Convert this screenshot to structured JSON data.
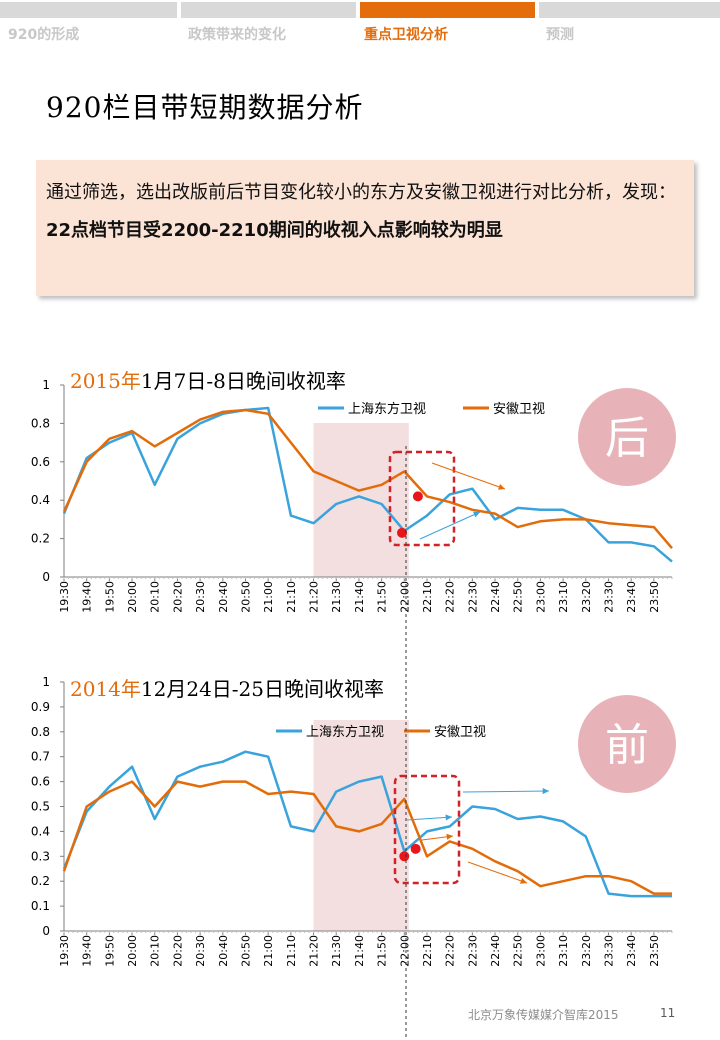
{
  "nav": {
    "items": [
      {
        "label": "920的形成",
        "active": false
      },
      {
        "label": "政策带来的变化",
        "active": false
      },
      {
        "label": "重点卫视分析",
        "active": true
      },
      {
        "label": "预测",
        "active": false
      }
    ]
  },
  "page": {
    "title": "920栏目带短期数据分析",
    "summary_normal": "通过筛选，选出改版前后节目变化较小的东方及安徽卫视进行对比分析，发现：",
    "summary_bold": "22点档节目受2200-2210期间的收视入点影响较为明显",
    "footer": "北京万象传媒媒介智库2015",
    "page_number": "11"
  },
  "colors": {
    "dongfang": "#3aa3dc",
    "anhui": "#e36c0a",
    "accent": "#e46c0a",
    "badge": "#e8b3b8",
    "highlight": "#f2dcdb",
    "dashed_box": "#d42027",
    "marker": "#e8151b"
  },
  "chart_data": [
    {
      "type": "line",
      "title_year": "2015年",
      "title_rest": "1月7日-8日晚间收视率",
      "badge": "后",
      "x": [
        "19:30",
        "19:40",
        "19:50",
        "20:00",
        "20:10",
        "20:20",
        "20:30",
        "20:40",
        "20:50",
        "21:00",
        "21:10",
        "21:20",
        "21:30",
        "21:40",
        "21:50",
        "22:00",
        "22:10",
        "22:20",
        "22:30",
        "22:40",
        "22:50",
        "23:00",
        "23:10",
        "23:20",
        "23:30",
        "23:40",
        "23:50",
        "23:58"
      ],
      "xticks": [
        "19:30",
        "19:40",
        "19:50",
        "20:00",
        "20:10",
        "20:20",
        "20:30",
        "20:40",
        "20:50",
        "21:00",
        "21:10",
        "21:20",
        "21:30",
        "21:40",
        "21:50",
        "22:00",
        "22:10",
        "22:20",
        "22:30",
        "22:40",
        "22:50",
        "23:00",
        "23:10",
        "23:20",
        "23:30",
        "23:40",
        "23:50"
      ],
      "ylim": [
        0,
        1
      ],
      "yticks": [
        "0",
        "0.2",
        "0.4",
        "0.6",
        "0.8",
        "1"
      ],
      "highlight_range": [
        "21:20",
        "22:02"
      ],
      "series": [
        {
          "name": "上海东方卫视",
          "values": [
            0.33,
            0.62,
            0.7,
            0.75,
            0.48,
            0.72,
            0.8,
            0.85,
            0.87,
            0.88,
            0.32,
            0.28,
            0.38,
            0.42,
            0.38,
            0.24,
            0.32,
            0.43,
            0.46,
            0.3,
            0.36,
            0.35,
            0.35,
            0.3,
            0.18,
            0.18,
            0.16,
            0.08
          ]
        },
        {
          "name": "安徽卫视",
          "values": [
            0.34,
            0.6,
            0.72,
            0.76,
            0.68,
            0.75,
            0.82,
            0.86,
            0.87,
            0.85,
            0.7,
            0.55,
            0.5,
            0.45,
            0.48,
            0.55,
            0.42,
            0.39,
            0.35,
            0.33,
            0.26,
            0.29,
            0.3,
            0.3,
            0.28,
            0.27,
            0.26,
            0.15
          ]
        }
      ],
      "markers": [
        {
          "x": "21:59",
          "y": 0.23
        },
        {
          "x": "22:06",
          "y": 0.42
        }
      ]
    },
    {
      "type": "line",
      "title_year": "2014年",
      "title_rest": "12月24日-25日晚间收视率",
      "badge": "前",
      "x": [
        "19:30",
        "19:40",
        "19:50",
        "20:00",
        "20:10",
        "20:20",
        "20:30",
        "20:40",
        "20:50",
        "21:00",
        "21:10",
        "21:20",
        "21:30",
        "21:40",
        "21:50",
        "22:00",
        "22:10",
        "22:20",
        "22:30",
        "22:40",
        "22:50",
        "23:00",
        "23:10",
        "23:20",
        "23:30",
        "23:40",
        "23:50",
        "23:58"
      ],
      "xticks": [
        "19:30",
        "19:40",
        "19:50",
        "20:00",
        "20:10",
        "20:20",
        "20:30",
        "20:40",
        "20:50",
        "21:00",
        "21:10",
        "21:20",
        "21:30",
        "21:40",
        "21:50",
        "22:00",
        "22:10",
        "22:20",
        "22:30",
        "22:40",
        "22:50",
        "23:00",
        "23:10",
        "23:20",
        "23:30",
        "23:40",
        "23:50"
      ],
      "ylim": [
        0,
        1
      ],
      "yticks": [
        "0",
        "0.1",
        "0.2",
        "0.3",
        "0.4",
        "0.5",
        "0.6",
        "0.7",
        "0.8",
        "0.9",
        "1"
      ],
      "highlight_range": [
        "21:20",
        "22:02"
      ],
      "series": [
        {
          "name": "上海东方卫视",
          "values": [
            0.25,
            0.48,
            0.58,
            0.66,
            0.45,
            0.62,
            0.66,
            0.68,
            0.72,
            0.7,
            0.42,
            0.4,
            0.56,
            0.6,
            0.62,
            0.32,
            0.4,
            0.42,
            0.5,
            0.49,
            0.45,
            0.46,
            0.44,
            0.38,
            0.15,
            0.14,
            0.14,
            0.14
          ]
        },
        {
          "name": "安徽卫视",
          "values": [
            0.24,
            0.5,
            0.56,
            0.6,
            0.5,
            0.6,
            0.58,
            0.6,
            0.6,
            0.55,
            0.56,
            0.55,
            0.42,
            0.4,
            0.43,
            0.53,
            0.3,
            0.36,
            0.33,
            0.28,
            0.24,
            0.18,
            0.2,
            0.22,
            0.22,
            0.2,
            0.15,
            0.15
          ]
        }
      ],
      "markers": [
        {
          "x": "22:00",
          "y": 0.3
        },
        {
          "x": "22:05",
          "y": 0.33
        }
      ]
    }
  ]
}
